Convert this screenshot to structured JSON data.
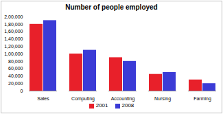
{
  "chart_data": {
    "type": "bar",
    "title": "Number of people employed",
    "categories": [
      "Sales",
      "Computing",
      "Accounting",
      "Nursing",
      "Farming"
    ],
    "series": [
      {
        "name": "2001",
        "color": "#e8202a",
        "values": [
          180000,
          100000,
          90000,
          45000,
          30000
        ]
      },
      {
        "name": "2008",
        "color": "#3b3bd6",
        "values": [
          190000,
          110000,
          80000,
          50000,
          20000
        ]
      }
    ],
    "ylim": [
      0,
      200000
    ],
    "yticks": [
      0,
      {
        "value": 20000,
        "label": "20,000"
      },
      {
        "value": 40000,
        "label": "40,000"
      },
      {
        "value": 60000,
        "label": "60,000"
      },
      {
        "value": 80000,
        "label": "80,000"
      },
      {
        "value": 100000,
        "label": "1,00,000"
      },
      {
        "value": 120000,
        "label": "1,20,000"
      },
      {
        "value": 140000,
        "label": "1,40,000"
      },
      {
        "value": 160000,
        "label": "1,60,000"
      },
      {
        "value": 180000,
        "label": "1,80,000"
      },
      {
        "value": 200000,
        "label": "2,00,000"
      }
    ],
    "grid": false,
    "legend": "bottom"
  }
}
